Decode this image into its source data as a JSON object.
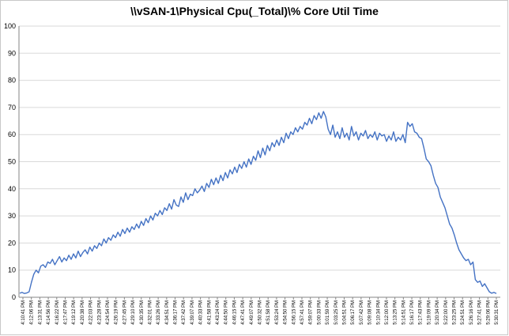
{
  "chart_data": {
    "type": "line",
    "title": "\\\\vSAN-1\\Physical Cpu(_Total)\\% Core Util Time",
    "xlabel": "",
    "ylabel": "",
    "ylim": [
      0,
      100
    ],
    "y_ticks": [
      "0",
      "10",
      "20",
      "30",
      "40",
      "50",
      "60",
      "70",
      "80",
      "90",
      "100"
    ],
    "grid": "horizontal",
    "legend": "none",
    "line_color": "#4472c4",
    "x_tick_labels": [
      "4:10:41 PM",
      "4:12:06 PM",
      "4:13:31 PM",
      "4:14:56 PM",
      "4:16:22 PM",
      "4:17:47 PM",
      "4:19:12 PM",
      "4:20:38 PM",
      "4:22:03 PM",
      "4:23:28 PM",
      "4:24:54 PM",
      "4:26:19 PM",
      "4:27:45 PM",
      "4:29:10 PM",
      "4:30:35 PM",
      "4:32:01 PM",
      "4:33:26 PM",
      "4:34:51 PM",
      "4:36:17 PM",
      "4:37:42 PM",
      "4:39:07 PM",
      "4:40:33 PM",
      "4:41:58 PM",
      "4:43:24 PM",
      "4:44:50 PM",
      "4:46:15 PM",
      "4:47:41 PM",
      "4:49:07 PM",
      "4:50:32 PM",
      "4:51:58 PM",
      "4:53:24 PM",
      "4:54:50 PM",
      "4:56:15 PM",
      "4:57:41 PM",
      "4:59:07 PM",
      "5:00:33 PM",
      "5:01:59 PM",
      "5:03:25 PM",
      "5:04:51 PM",
      "5:06:17 PM",
      "5:07:42 PM",
      "5:09:08 PM",
      "5:10:34 PM",
      "5:12:00 PM",
      "5:13:25 PM",
      "5:14:51 PM",
      "5:16:17 PM",
      "5:17:43 PM",
      "5:19:09 PM",
      "5:20:34 PM",
      "5:22:00 PM",
      "5:23:25 PM",
      "5:24:51 PM",
      "5:26:16 PM",
      "5:27:41 PM",
      "5:29:06 PM",
      "5:30:31 PM"
    ],
    "series": [
      {
        "values": [
          1.5,
          1.8,
          1.4,
          1.6,
          2.0,
          5.5,
          8.5,
          10.0,
          9.0,
          11.5,
          12.0,
          11.0,
          13.0,
          12.5,
          14.0,
          12.0,
          13.5,
          15.0,
          13.0,
          14.5,
          13.5,
          15.5,
          14.0,
          16.0,
          14.5,
          17.0,
          15.0,
          16.5,
          17.5,
          16.0,
          18.5,
          17.0,
          19.0,
          18.0,
          20.0,
          19.0,
          21.5,
          20.0,
          22.0,
          21.0,
          23.0,
          22.0,
          24.0,
          22.5,
          25.0,
          23.5,
          25.5,
          24.0,
          26.0,
          25.0,
          27.0,
          25.5,
          28.0,
          26.5,
          29.0,
          27.5,
          30.0,
          28.5,
          31.0,
          30.0,
          32.0,
          30.5,
          33.0,
          32.0,
          34.5,
          32.5,
          36.0,
          34.0,
          33.5,
          37.0,
          35.0,
          38.5,
          36.0,
          38.0,
          37.5,
          40.0,
          38.5,
          39.5,
          41.0,
          39.0,
          42.0,
          40.5,
          43.5,
          41.5,
          44.0,
          42.0,
          45.0,
          43.0,
          46.0,
          44.0,
          47.0,
          45.5,
          48.0,
          46.0,
          49.0,
          47.5,
          50.0,
          48.0,
          51.0,
          49.0,
          52.0,
          50.5,
          54.0,
          51.5,
          55.0,
          52.5,
          56.0,
          54.0,
          57.0,
          55.5,
          58.0,
          56.0,
          59.0,
          57.0,
          60.5,
          58.5,
          61.0,
          60.0,
          62.5,
          61.0,
          63.0,
          62.0,
          64.5,
          63.5,
          66.0,
          64.0,
          67.0,
          65.5,
          68.0,
          66.0,
          68.5,
          66.5,
          62.0,
          60.0,
          63.5,
          59.0,
          61.0,
          58.5,
          62.5,
          59.0,
          60.5,
          58.0,
          63.0,
          59.5,
          61.0,
          58.0,
          60.5,
          59.5,
          61.5,
          58.5,
          60.0,
          59.0,
          61.0,
          58.0,
          60.5,
          59.5,
          60.0,
          57.5,
          59.5,
          58.0,
          61.0,
          57.5,
          59.0,
          58.0,
          60.0,
          57.0,
          64.5,
          63.0,
          64.0,
          61.0,
          60.5,
          59.0,
          58.5,
          55.0,
          51.0,
          50.0,
          48.5,
          45.0,
          42.0,
          40.5,
          37.0,
          35.0,
          33.0,
          30.0,
          27.0,
          25.5,
          23.0,
          20.0,
          17.5,
          16.0,
          14.5,
          13.5,
          14.0,
          12.0,
          13.0,
          6.5,
          5.5,
          6.0,
          4.0,
          5.0,
          3.5,
          2.0,
          1.5,
          1.8,
          1.4
        ]
      }
    ]
  }
}
